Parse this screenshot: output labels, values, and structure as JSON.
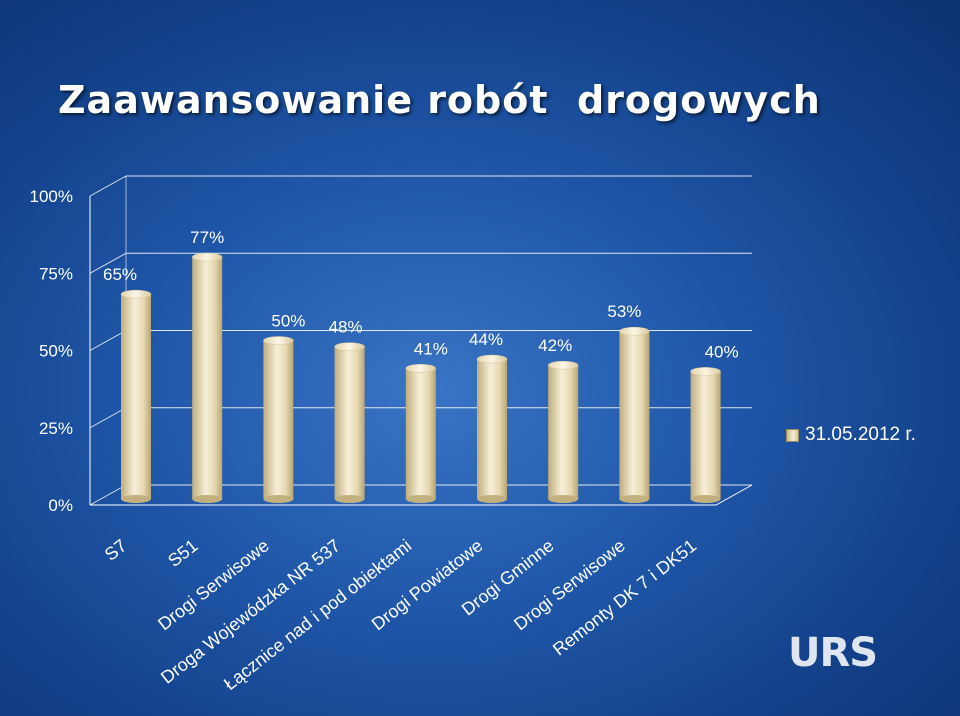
{
  "slide": {
    "title": "Zaawansowanie robót  drogowych",
    "logo_text": "URS"
  },
  "colors": {
    "background": "#1f56a8",
    "bar_fill_light": "#f5ecd2",
    "bar_fill_dark": "#c9b788"
  },
  "chart_data": {
    "type": "bar",
    "title": "",
    "xlabel": "",
    "ylabel": "",
    "ylim": [
      0,
      1
    ],
    "y_ticks": [
      "0%",
      "25%",
      "50%",
      "75%",
      "100%"
    ],
    "categories": [
      "S7",
      "S51",
      "Drogi Serwisowe",
      "Droga Wojewódzka NR 537",
      "Łącznice nad i pod obiektami",
      "Drogi Powiatowe",
      "Drogi Gminne",
      "Drogi Serwisowe",
      "Remonty DK 7 i DK51"
    ],
    "series": [
      {
        "name": "31.05.2012 r.",
        "values": [
          0.65,
          0.77,
          0.5,
          0.48,
          0.41,
          0.44,
          0.42,
          0.53,
          0.4
        ],
        "labels": [
          "65%",
          "77%",
          "50%",
          "48%",
          "41%",
          "44%",
          "42%",
          "53%",
          "40%"
        ]
      }
    ],
    "legend_position": "right",
    "grid": true,
    "style": "3d-cylinder"
  }
}
